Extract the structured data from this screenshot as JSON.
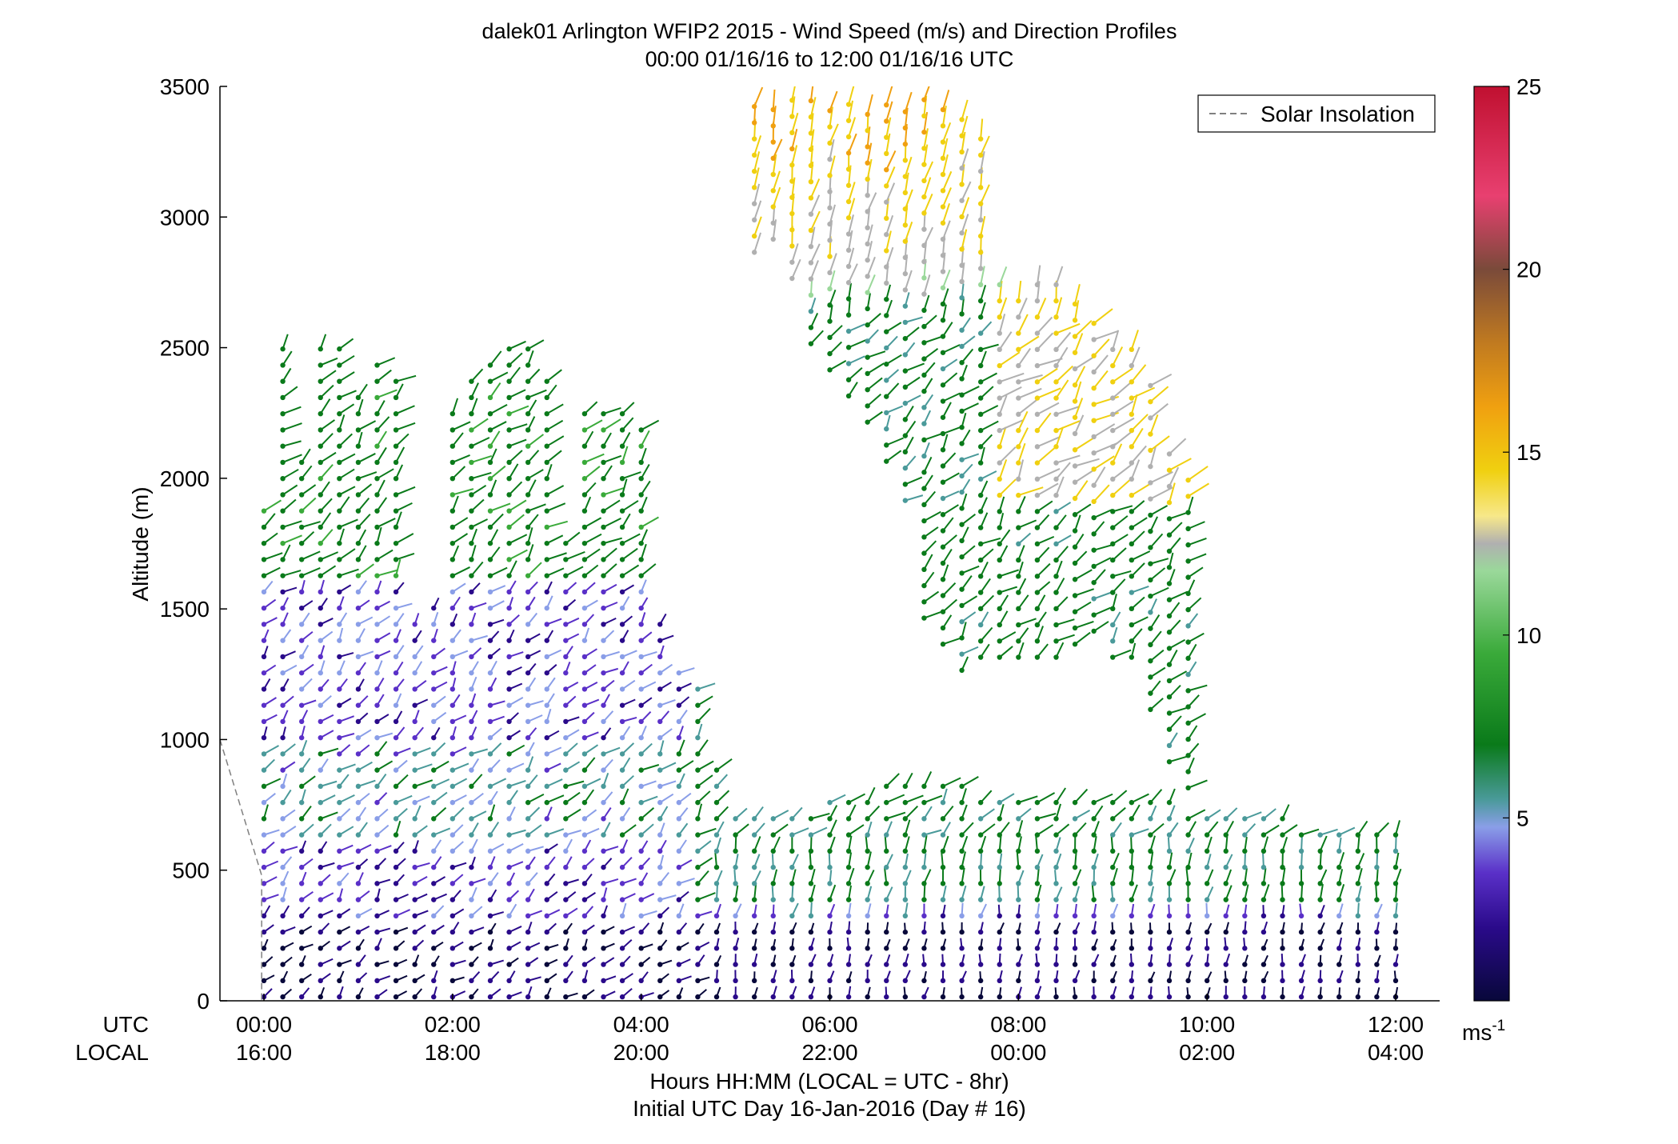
{
  "chart_data": {
    "type": "wind-barb-profile",
    "title": "dalek01 Arlington WFIP2 2015 - Wind Speed (m/s) and Direction Profiles",
    "subtitle": "00:00 01/16/16 to 12:00 01/16/16  UTC",
    "ylabel": "Altitude (m)",
    "xlabel": "Hours HH:MM  (LOCAL = UTC - 8hr)",
    "xlabel2": "Initial UTC Day 16-Jan-2016 (Day # 16)",
    "row_label_utc": "UTC",
    "row_label_local": "LOCAL",
    "ylim": [
      0,
      3500
    ],
    "y_ticks": [
      0,
      500,
      1000,
      1500,
      2000,
      2500,
      3000,
      3500
    ],
    "x_ticks_utc": [
      "00:00",
      "02:00",
      "04:00",
      "06:00",
      "08:00",
      "10:00",
      "12:00"
    ],
    "x_ticks_local": [
      "16:00",
      "18:00",
      "20:00",
      "22:00",
      "00:00",
      "02:00",
      "04:00"
    ],
    "legend": [
      "Solar Insolation"
    ],
    "legend_position": "top-right",
    "colorbar": {
      "ticks": [
        5,
        10,
        15,
        20,
        25
      ],
      "range": [
        0,
        25
      ],
      "unit_base": "ms",
      "unit_exp": "-1",
      "colors": [
        "#08083a",
        "#2a0a8a",
        "#5a30c8",
        "#8a9ee8",
        "#4a9a9a",
        "#0a7a1a",
        "#3aaa3a",
        "#9ad89a",
        "#b0b0b0",
        "#f0d010",
        "#f0a010",
        "#c07a20",
        "#7a4a3a",
        "#e84070",
        "#c01030"
      ]
    },
    "solar_insolation": [
      {
        "x": 0.0,
        "y": 1000
      },
      {
        "x": 0.4,
        "y": 480
      },
      {
        "x": 0.4,
        "y": 0
      }
    ],
    "profile_columns": [
      {
        "x": 0.0,
        "top": 1900,
        "bottom": 0
      },
      {
        "x": 0.2,
        "top": 2500,
        "bottom": 0
      },
      {
        "x": 0.4,
        "top": 2100,
        "bottom": 0
      },
      {
        "x": 0.6,
        "top": 2550,
        "bottom": 0
      },
      {
        "x": 0.8,
        "top": 2500,
        "bottom": 0
      },
      {
        "x": 1.0,
        "top": 2350,
        "bottom": 0
      },
      {
        "x": 1.2,
        "top": 2450,
        "bottom": 0
      },
      {
        "x": 1.4,
        "top": 2420,
        "bottom": 0
      },
      {
        "x": 1.6,
        "top": 1500,
        "bottom": 0
      },
      {
        "x": 1.8,
        "top": 1550,
        "bottom": 0
      },
      {
        "x": 2.0,
        "top": 2300,
        "bottom": 0
      },
      {
        "x": 2.2,
        "top": 2400,
        "bottom": 0
      },
      {
        "x": 2.4,
        "top": 2450,
        "bottom": 0
      },
      {
        "x": 2.6,
        "top": 2500,
        "bottom": 0
      },
      {
        "x": 2.8,
        "top": 2500,
        "bottom": 0
      },
      {
        "x": 3.0,
        "top": 2400,
        "bottom": 0
      },
      {
        "x": 3.2,
        "top": 1800,
        "bottom": 0
      },
      {
        "x": 3.4,
        "top": 2300,
        "bottom": 0
      },
      {
        "x": 3.6,
        "top": 2250,
        "bottom": 0
      },
      {
        "x": 3.8,
        "top": 2250,
        "bottom": 0
      },
      {
        "x": 4.0,
        "top": 2200,
        "bottom": 0
      },
      {
        "x": 4.2,
        "top": 1450,
        "bottom": 0
      },
      {
        "x": 4.4,
        "top": 1300,
        "bottom": 0
      },
      {
        "x": 4.6,
        "top": 1200,
        "bottom": 0
      },
      {
        "x": 4.8,
        "top": 900,
        "bottom": 0
      },
      {
        "x": 5.0,
        "top": 750,
        "bottom": 0
      },
      {
        "x": 5.2,
        "top": 700,
        "bottom": 0
      },
      {
        "x": 5.4,
        "top": 700,
        "bottom": 0
      },
      {
        "x": 5.6,
        "top": 720,
        "bottom": 0
      },
      {
        "x": 5.8,
        "top": 750,
        "bottom": 0
      },
      {
        "x": 6.0,
        "top": 780,
        "bottom": 0
      },
      {
        "x": 6.2,
        "top": 800,
        "bottom": 0
      },
      {
        "x": 6.4,
        "top": 820,
        "bottom": 0
      },
      {
        "x": 6.6,
        "top": 830,
        "bottom": 0
      },
      {
        "x": 6.8,
        "top": 830,
        "bottom": 0
      },
      {
        "x": 7.0,
        "top": 830,
        "bottom": 0
      },
      {
        "x": 7.2,
        "top": 830,
        "bottom": 0
      },
      {
        "x": 7.4,
        "top": 830,
        "bottom": 0
      },
      {
        "x": 7.6,
        "top": 820,
        "bottom": 0
      },
      {
        "x": 7.8,
        "top": 820,
        "bottom": 0
      },
      {
        "x": 8.0,
        "top": 810,
        "bottom": 0
      },
      {
        "x": 8.2,
        "top": 810,
        "bottom": 0
      },
      {
        "x": 8.4,
        "top": 800,
        "bottom": 0
      },
      {
        "x": 8.6,
        "top": 800,
        "bottom": 0
      },
      {
        "x": 8.8,
        "top": 790,
        "bottom": 0
      },
      {
        "x": 9.0,
        "top": 780,
        "bottom": 0
      },
      {
        "x": 9.2,
        "top": 780,
        "bottom": 0
      },
      {
        "x": 9.4,
        "top": 770,
        "bottom": 0
      },
      {
        "x": 9.6,
        "top": 760,
        "bottom": 0
      },
      {
        "x": 9.8,
        "top": 750,
        "bottom": 0
      },
      {
        "x": 10.0,
        "top": 740,
        "bottom": 0
      },
      {
        "x": 10.2,
        "top": 730,
        "bottom": 0
      },
      {
        "x": 10.4,
        "top": 720,
        "bottom": 0
      },
      {
        "x": 10.6,
        "top": 710,
        "bottom": 0
      },
      {
        "x": 10.8,
        "top": 700,
        "bottom": 0
      },
      {
        "x": 11.0,
        "top": 690,
        "bottom": 0
      },
      {
        "x": 11.2,
        "top": 680,
        "bottom": 0
      },
      {
        "x": 11.4,
        "top": 670,
        "bottom": 0
      },
      {
        "x": 11.6,
        "top": 660,
        "bottom": 0
      },
      {
        "x": 11.8,
        "top": 650,
        "bottom": 0
      },
      {
        "x": 12.0,
        "top": 650,
        "bottom": 0
      }
    ],
    "upper_layer_columns": [
      {
        "x": 5.2,
        "top": 3450,
        "bottom": 2850
      },
      {
        "x": 5.4,
        "top": 3450,
        "bottom": 2900
      },
      {
        "x": 5.6,
        "top": 3450,
        "bottom": 2750
      },
      {
        "x": 5.8,
        "top": 3450,
        "bottom": 2500
      },
      {
        "x": 6.0,
        "top": 3450,
        "bottom": 2400
      },
      {
        "x": 6.2,
        "top": 3450,
        "bottom": 2300
      },
      {
        "x": 6.4,
        "top": 3450,
        "bottom": 2200
      },
      {
        "x": 6.6,
        "top": 3450,
        "bottom": 2050
      },
      {
        "x": 6.8,
        "top": 3450,
        "bottom": 1900
      },
      {
        "x": 7.0,
        "top": 3450,
        "bottom": 1450
      },
      {
        "x": 7.2,
        "top": 3450,
        "bottom": 1350
      },
      {
        "x": 7.4,
        "top": 3400,
        "bottom": 1250
      },
      {
        "x": 7.6,
        "top": 3300,
        "bottom": 1300
      },
      {
        "x": 7.8,
        "top": 2800,
        "bottom": 1300
      },
      {
        "x": 8.0,
        "top": 2700,
        "bottom": 1300
      },
      {
        "x": 8.2,
        "top": 2750,
        "bottom": 1300
      },
      {
        "x": 8.4,
        "top": 2800,
        "bottom": 1300
      },
      {
        "x": 8.6,
        "top": 2700,
        "bottom": 1350
      },
      {
        "x": 8.8,
        "top": 2650,
        "bottom": 1400
      },
      {
        "x": 9.0,
        "top": 2550,
        "bottom": 1300
      },
      {
        "x": 9.2,
        "top": 2500,
        "bottom": 1300
      },
      {
        "x": 9.4,
        "top": 2400,
        "bottom": 1100
      },
      {
        "x": 9.6,
        "top": 2100,
        "bottom": 900
      },
      {
        "x": 9.8,
        "top": 2050,
        "bottom": 800
      }
    ]
  }
}
